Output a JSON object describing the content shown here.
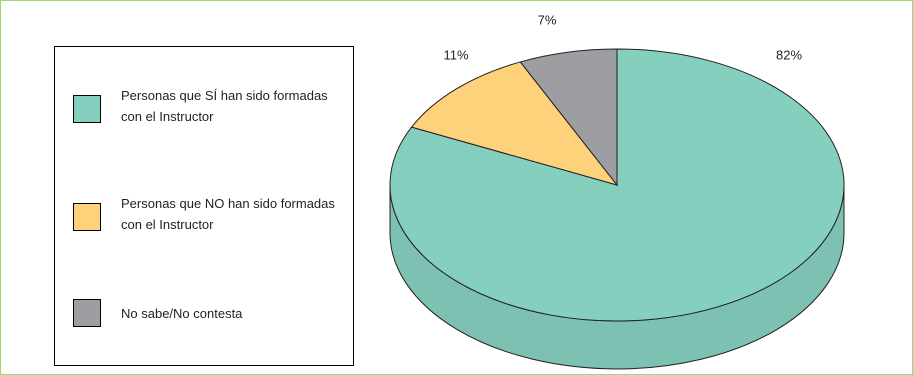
{
  "chart_data": {
    "type": "pie",
    "legend_position": "left",
    "slices": [
      {
        "label": "Personas que SÍ han sido formadas con el Instructor",
        "value": 82,
        "value_label": "82%",
        "color": "#85cfbf"
      },
      {
        "label": "Personas que NO han sido formadas con el Instructor",
        "value": 11,
        "value_label": "11%",
        "color": "#fdd27a"
      },
      {
        "label": "No sabe/No contesta",
        "value": 7,
        "value_label": "7%",
        "color": "#9c9ea1"
      }
    ]
  }
}
